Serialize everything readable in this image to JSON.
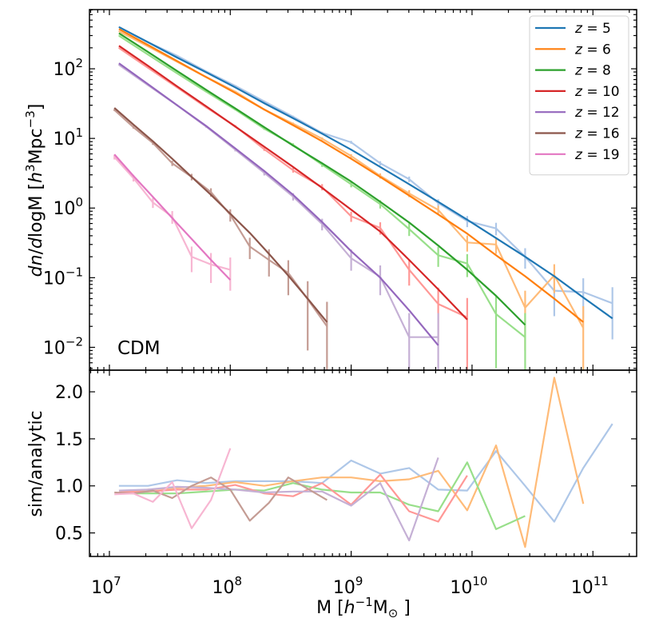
{
  "chart_data": {
    "type": "line",
    "xscale": "log",
    "xlim": [
      6840000.0,
      230000000000.0
    ],
    "xlabel": {
      "pre": "M [",
      "italic": "h",
      "sup": "−1",
      "mid": "M",
      "sub": "⊙",
      "post": " ]"
    },
    "xticks": [
      {
        "value": 10000000.0,
        "base": "10",
        "exp": "7"
      },
      {
        "value": 100000000.0,
        "base": "10",
        "exp": "8"
      },
      {
        "value": 1000000000.0,
        "base": "10",
        "exp": "9"
      },
      {
        "value": 10000000000.0,
        "base": "10",
        "exp": "10"
      },
      {
        "value": 100000000000.0,
        "base": "10",
        "exp": "11"
      }
    ],
    "top_panel": {
      "yscale": "log",
      "ylim": [
        0.0047,
        708
      ],
      "ylabel": {
        "italic1": "dn",
        "mid1": "/",
        "italic2": "d",
        "mid2": "logM [",
        "italic3": "h",
        "sup1": "3",
        "mid3": "Mpc",
        "sup2": "−3",
        "post": "]"
      },
      "yticks": [
        {
          "value": 100,
          "base": "10",
          "exp": "2"
        },
        {
          "value": 10,
          "base": "10",
          "exp": "1"
        },
        {
          "value": 1,
          "base": "10",
          "exp": "0"
        },
        {
          "value": 0.1,
          "base": "10",
          "exp": "−1"
        },
        {
          "value": 0.01,
          "base": "10",
          "exp": "−2"
        }
      ],
      "annotation": "CDM"
    },
    "bottom_panel": {
      "yscale": "linear",
      "ylim": [
        0.25,
        2.23
      ],
      "ylabel": "sim/analytic",
      "yticks": [
        {
          "value": 2.0,
          "label": "2.0"
        },
        {
          "value": 1.5,
          "label": "1.5"
        },
        {
          "value": 1.0,
          "label": "1.0"
        },
        {
          "value": 0.5,
          "label": "0.5"
        }
      ]
    },
    "legend": {
      "position": "upper right"
    },
    "series": [
      {
        "name": "z = 5",
        "color": "#1f77b4",
        "sim_color": "#aec7e8",
        "x": [
          12000000.0,
          20900000.0,
          36300000.0,
          63100000.0,
          110000000.0,
          191000000.0,
          331000000.0,
          575000000.0,
          1000000000.0,
          1740000000.0,
          3020000000.0,
          5250000000.0,
          9120000000.0,
          15800000000.0,
          27500000000.0,
          47900000000.0,
          83200000000.0,
          145000000000.0
        ],
        "analytic": [
          398,
          240,
          145,
          89,
          54,
          32,
          19.5,
          11.7,
          6.9,
          3.9,
          2.2,
          1.23,
          0.68,
          0.37,
          0.2,
          0.105,
          0.052,
          0.026
        ],
        "sim": [
          398,
          240,
          154,
          92,
          57,
          34,
          20.5,
          12.0,
          8.8,
          4.4,
          2.6,
          1.18,
          0.65,
          0.51,
          0.2,
          0.065,
          0.062,
          0.043
        ],
        "sim_err": [
          2.9,
          2.26,
          1.81,
          1.4,
          1.1,
          0.85,
          0.66,
          0.5,
          0.43,
          0.31,
          0.235,
          0.158,
          0.118,
          0.104,
          0.065,
          0.037,
          0.036,
          0.03
        ],
        "ratio": [
          1.0,
          1.0,
          1.06,
          1.03,
          1.05,
          1.05,
          1.05,
          1.03,
          1.27,
          1.13,
          1.19,
          0.96,
          0.95,
          1.37,
          1.0,
          0.62,
          1.19,
          1.66
        ]
      },
      {
        "name": "z = 6",
        "color": "#ff7f0e",
        "sim_color": "#ffbb78",
        "x": [
          12000000.0,
          20900000.0,
          36300000.0,
          63100000.0,
          110000000.0,
          191000000.0,
          331000000.0,
          575000000.0,
          1000000000.0,
          1740000000.0,
          3020000000.0,
          5250000000.0,
          9120000000.0,
          15800000000.0,
          27500000000.0,
          47900000000.0,
          83200000000.0
        ],
        "analytic": [
          372,
          219,
          129,
          76,
          45,
          26,
          15.5,
          9.1,
          5.1,
          2.8,
          1.51,
          0.81,
          0.43,
          0.21,
          0.105,
          0.05,
          0.023
        ],
        "sim": [
          346,
          210,
          126,
          76,
          47,
          26,
          16.3,
          9.9,
          5.6,
          2.9,
          1.62,
          0.94,
          0.32,
          0.3,
          0.037,
          0.108,
          0.019
        ],
        "sim_err": [
          2.71,
          2.11,
          1.64,
          1.27,
          1.0,
          0.74,
          0.59,
          0.46,
          0.345,
          0.248,
          0.186,
          0.141,
          0.083,
          0.08,
          0.028,
          0.048,
          0.02
        ],
        "ratio": [
          0.93,
          0.96,
          0.98,
          1.0,
          1.04,
          1.0,
          1.05,
          1.09,
          1.09,
          1.05,
          1.07,
          1.16,
          0.74,
          1.43,
          0.35,
          2.15,
          0.81
        ]
      },
      {
        "name": "z = 8",
        "color": "#2ca02c",
        "sim_color": "#98df8a",
        "x": [
          12000000.0,
          20900000.0,
          36300000.0,
          63100000.0,
          110000000.0,
          191000000.0,
          331000000.0,
          575000000.0,
          1000000000.0,
          1740000000.0,
          3020000000.0,
          5250000000.0,
          9120000000.0,
          15800000000.0,
          27500000000.0
        ],
        "analytic": [
          324,
          174,
          93,
          50,
          27,
          14.5,
          7.9,
          4.4,
          2.4,
          1.23,
          0.62,
          0.29,
          0.13,
          0.055,
          0.021
        ],
        "sim": [
          298,
          160,
          86,
          47,
          26,
          13.8,
          8.1,
          4.2,
          2.2,
          1.14,
          0.5,
          0.21,
          0.16,
          0.03,
          0.014
        ],
        "sim_err": [
          2.52,
          1.85,
          1.35,
          1.0,
          0.74,
          0.54,
          0.415,
          0.3,
          0.216,
          0.156,
          0.103,
          0.067,
          0.058,
          0.025,
          0.017
        ],
        "ratio": [
          0.92,
          0.92,
          0.92,
          0.94,
          0.96,
          0.95,
          1.03,
          0.96,
          0.93,
          0.93,
          0.8,
          0.73,
          1.25,
          0.54,
          0.68
        ]
      },
      {
        "name": "z = 10",
        "color": "#d62728",
        "sim_color": "#ff9896",
        "x": [
          12000000.0,
          20900000.0,
          36300000.0,
          63100000.0,
          110000000.0,
          191000000.0,
          331000000.0,
          575000000.0,
          1000000000.0,
          1740000000.0,
          3020000000.0,
          5250000000.0,
          9120000000.0
        ],
        "analytic": [
          214,
          110,
          56,
          29,
          14.8,
          7.6,
          3.9,
          1.95,
          0.95,
          0.46,
          0.18,
          0.068,
          0.025
        ],
        "sim": [
          199,
          103,
          54,
          28,
          15,
          7.0,
          3.5,
          2.0,
          0.76,
          0.52,
          0.13,
          0.042,
          0.027
        ],
        "sim_err": [
          2.06,
          1.48,
          1.07,
          0.77,
          0.56,
          0.386,
          0.273,
          0.206,
          0.127,
          0.105,
          0.053,
          0.03,
          0.024
        ],
        "ratio": [
          0.93,
          0.94,
          0.96,
          0.96,
          1.01,
          0.92,
          0.89,
          1.03,
          0.8,
          1.12,
          0.73,
          0.62,
          1.11
        ]
      },
      {
        "name": "z = 12",
        "color": "#9467bd",
        "sim_color": "#c5b0d5",
        "x": [
          12000000.0,
          20900000.0,
          36300000.0,
          63100000.0,
          110000000.0,
          191000000.0,
          331000000.0,
          575000000.0,
          1000000000.0,
          1740000000.0,
          3020000000.0,
          5250000000.0
        ],
        "analytic": [
          120,
          60,
          30,
          15.1,
          7.2,
          3.4,
          1.55,
          0.63,
          0.24,
          0.1,
          0.034,
          0.0107
        ],
        "sim": [
          114,
          58,
          30,
          14.8,
          6.9,
          3.2,
          1.46,
          0.59,
          0.19,
          0.103,
          0.014,
          0.014
        ],
        "sim_err": [
          1.56,
          1.11,
          0.8,
          0.56,
          0.383,
          0.261,
          0.176,
          0.112,
          0.064,
          0.047,
          0.017,
          0.017
        ],
        "ratio": [
          0.95,
          0.96,
          0.99,
          0.98,
          0.96,
          0.93,
          0.94,
          0.94,
          0.79,
          1.03,
          0.42,
          1.3
        ]
      },
      {
        "name": "z = 16",
        "color": "#8c564b",
        "sim_color": "#c49c94",
        "x": [
          11000000.0,
          15800000.0,
          22900000.0,
          33100000.0,
          47900000.0,
          69200000.0,
          100000000.0,
          145000000.0,
          209000000.0,
          302000000.0,
          437000000.0,
          631000000.0
        ],
        "analytic": [
          27.5,
          15.8,
          9.1,
          5.1,
          2.8,
          1.55,
          0.83,
          0.44,
          0.22,
          0.107,
          0.05,
          0.023
        ],
        "sim": [
          25.6,
          14.5,
          8.6,
          4.4,
          2.8,
          1.69,
          0.8,
          0.28,
          0.18,
          0.117,
          0.049,
          0.02
        ],
        "sim_err": [
          0.91,
          0.68,
          0.53,
          0.377,
          0.3,
          0.233,
          0.161,
          0.095,
          0.076,
          0.061,
          0.04,
          0.025
        ],
        "ratio": [
          0.93,
          0.92,
          0.95,
          0.87,
          1.0,
          1.09,
          0.96,
          0.63,
          0.82,
          1.09,
          0.97,
          0.85
        ]
      },
      {
        "name": "z = 19",
        "color": "#e377c2",
        "sim_color": "#f7b6d2",
        "x": [
          11000000.0,
          15800000.0,
          22900000.0,
          33100000.0,
          47900000.0,
          69200000.0,
          100000000.0
        ],
        "analytic": [
          5.9,
          2.9,
          1.45,
          0.72,
          0.36,
          0.18,
          0.093
        ],
        "sim": [
          5.4,
          2.7,
          1.2,
          0.75,
          0.2,
          0.155,
          0.13
        ],
        "sim_err": [
          0.42,
          0.295,
          0.197,
          0.156,
          0.08,
          0.071,
          0.065
        ],
        "ratio": [
          0.91,
          0.92,
          0.83,
          1.04,
          0.55,
          0.85,
          1.4
        ]
      }
    ]
  }
}
